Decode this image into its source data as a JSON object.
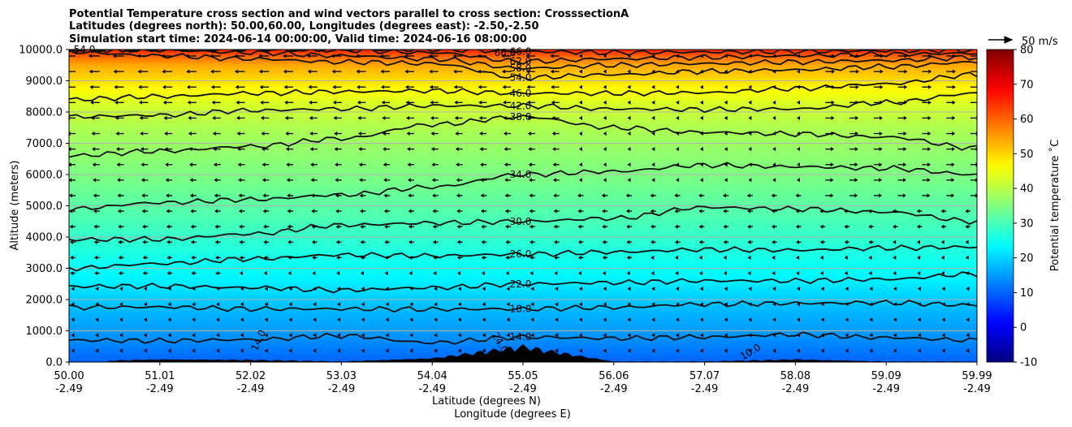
{
  "chart_data": {
    "type": "heatmap",
    "title_lines": [
      "Potential Temperature cross section and wind vectors parallel to cross section: CrosssectionA",
      "Latitudes (degrees north): 50.00,60.00, Longitudes (degrees east): -2.50,-2.50",
      "Simulation start time: 2024-06-14 00:00:00, Valid time: 2024-06-16 08:00:00"
    ],
    "ylabel": "Altitude (meters)",
    "xlabel_lines": [
      "Latitude (degrees N)",
      "Longitude (degrees E)"
    ],
    "xlim": [
      50.0,
      59.99
    ],
    "ylim": [
      0,
      10000
    ],
    "grid": "horizontal",
    "x_ticks": [
      {
        "lat": "50.00",
        "lon": "-2.49"
      },
      {
        "lat": "51.01",
        "lon": "-2.49"
      },
      {
        "lat": "52.02",
        "lon": "-2.49"
      },
      {
        "lat": "53.03",
        "lon": "-2.49"
      },
      {
        "lat": "54.04",
        "lon": "-2.49"
      },
      {
        "lat": "55.05",
        "lon": "-2.49"
      },
      {
        "lat": "56.06",
        "lon": "-2.49"
      },
      {
        "lat": "57.07",
        "lon": "-2.49"
      },
      {
        "lat": "58.08",
        "lon": "-2.49"
      },
      {
        "lat": "59.09",
        "lon": "-2.49"
      },
      {
        "lat": "59.99",
        "lon": "-2.49"
      }
    ],
    "y_ticks": [
      "0.0",
      "1000.0",
      "2000.0",
      "3000.0",
      "4000.0",
      "5000.0",
      "6000.0",
      "7000.0",
      "8000.0",
      "9000.0",
      "10000.0"
    ],
    "colorbar": {
      "label": "Potential temperature $^\\circ$C",
      "label_display": "Potential temperature ˚C",
      "range": [
        -10,
        80
      ],
      "ticks": [
        "-10",
        "0",
        "10",
        "20",
        "30",
        "40",
        "50",
        "60",
        "70",
        "80"
      ],
      "colormap": "jet"
    },
    "quiver_key": {
      "label": "50 m/s"
    },
    "contour_levels": [
      {
        "label": "14.0",
        "alt": [
          700,
          680,
          720,
          840,
          620,
          800,
          760,
          800,
          880,
          780,
          700
        ]
      },
      {
        "label": "18.0",
        "alt": [
          1750,
          1760,
          1700,
          1700,
          1690,
          1700,
          1750,
          1850,
          1880,
          1900,
          1820
        ]
      },
      {
        "label": "22.0",
        "alt": [
          2420,
          2430,
          2380,
          2300,
          2380,
          2500,
          2540,
          2600,
          2600,
          2650,
          2820
        ]
      },
      {
        "label": "26.0",
        "alt": [
          3000,
          3150,
          3300,
          3430,
          3400,
          3450,
          3520,
          3600,
          3580,
          3650,
          3680
        ]
      },
      {
        "label": "30.0",
        "alt": [
          3920,
          3930,
          4100,
          4380,
          4450,
          4500,
          4600,
          4950,
          4900,
          4800,
          4500
        ]
      },
      {
        "label": "34.0",
        "alt": [
          4900,
          5100,
          5200,
          5350,
          5600,
          6000,
          6100,
          6300,
          6250,
          6200,
          6000
        ]
      },
      {
        "label": "38.0",
        "alt": [
          6600,
          6750,
          6900,
          7150,
          7600,
          7850,
          7500,
          7350,
          7300,
          7200,
          6850
        ]
      },
      {
        "label": "42.0",
        "alt": [
          7850,
          7900,
          8050,
          8100,
          8200,
          8200,
          8100,
          8080,
          8100,
          8300,
          8600
        ]
      },
      {
        "label": "46.0",
        "alt": [
          8400,
          8500,
          8600,
          8650,
          8680,
          8600,
          8600,
          8620,
          8750,
          8900,
          9200
        ]
      },
      {
        "label": "54.0",
        "alt": [
          9920,
          9800,
          9700,
          9600,
          9550,
          9100,
          9200,
          9300,
          9350,
          9450,
          9600
        ]
      },
      {
        "label": "58.0",
        "alt": [
          10000,
          9980,
          9900,
          9800,
          9700,
          9400,
          9500,
          9550,
          9600,
          9650,
          9750
        ]
      },
      {
        "label": "62.0",
        "alt": [
          10000,
          10000,
          10000,
          9980,
          9900,
          9620,
          9700,
          9750,
          9800,
          9850,
          9880
        ]
      },
      {
        "label": "66.0",
        "alt": [
          10000,
          10000,
          10000,
          10000,
          10000,
          9940,
          9900,
          9920,
          9940,
          9960,
          9980
        ]
      }
    ],
    "contour_inline_labels": [
      "54.0",
      "66.0",
      "14.0",
      "24.0",
      "10.0"
    ],
    "terrain_peak_alt": [
      0,
      80,
      60,
      0,
      120,
      550,
      0,
      0,
      80,
      0,
      0
    ]
  }
}
